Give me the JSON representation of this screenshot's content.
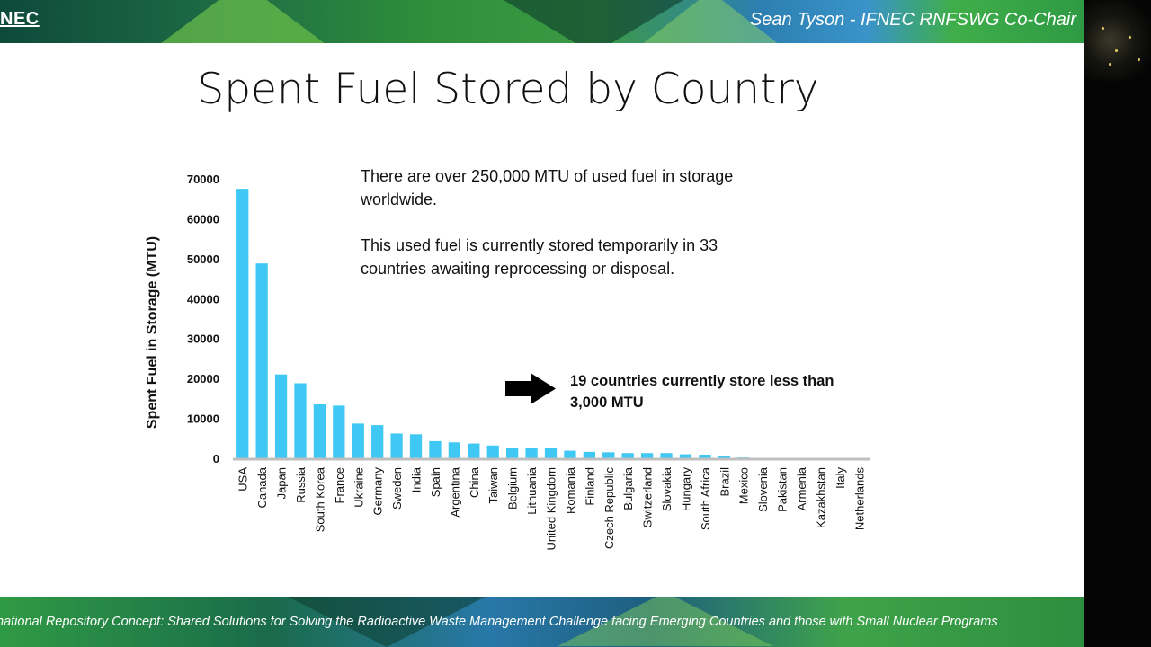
{
  "header": {
    "logo_text": "NEC",
    "presenter": "Sean Tyson - IFNEC RNFSWG Co-Chair"
  },
  "slide": {
    "title": "Spent Fuel Stored by Country",
    "paragraph1": "There are over 250,000 MTU of used fuel in storage worldwide.",
    "paragraph2": "This used fuel is currently stored temporarily in 33 countries awaiting reprocessing or disposal.",
    "callout": "19 countries currently store less than 3,000 MTU"
  },
  "footer": {
    "text": "national Repository Concept: Shared Solutions for Solving the Radioactive Waste Management Challenge facing Emerging Countries and those with Small Nuclear Programs"
  },
  "colors": {
    "bar": "#3fc8f4",
    "axis": "#bfbfbf",
    "text": "#111111"
  },
  "chart_data": {
    "type": "bar",
    "title": "",
    "xlabel": "",
    "ylabel": "Spent Fuel in Storage (MTU)",
    "ylim": [
      0,
      70000
    ],
    "yticks": [
      "0",
      "10000",
      "20000",
      "30000",
      "40000",
      "50000",
      "60000",
      "70000"
    ],
    "grid": false,
    "categories": [
      "USA",
      "Canada",
      "Japan",
      "Russia",
      "South Korea",
      "France",
      "Ukraine",
      "Germany",
      "Sweden",
      "India",
      "Spain",
      "Argentina",
      "China",
      "Taiwan",
      "Belgium",
      "Lithuania",
      "United Kingdom",
      "Romania",
      "Finland",
      "Czech Republic",
      "Bulgaria",
      "Switzerland",
      "Slovakia",
      "Hungary",
      "South Africa",
      "Brazil",
      "Mexico",
      "Slovenia",
      "Pakistan",
      "Armenia",
      "Kazakhstan",
      "Italy",
      "Netherlands"
    ],
    "values": [
      67500,
      48800,
      21000,
      18800,
      13500,
      13200,
      8700,
      8300,
      6200,
      6000,
      4300,
      4000,
      3700,
      3200,
      2700,
      2600,
      2600,
      1900,
      1600,
      1500,
      1300,
      1300,
      1300,
      1000,
      900,
      500,
      200,
      100,
      100,
      100,
      100,
      100,
      100
    ]
  }
}
